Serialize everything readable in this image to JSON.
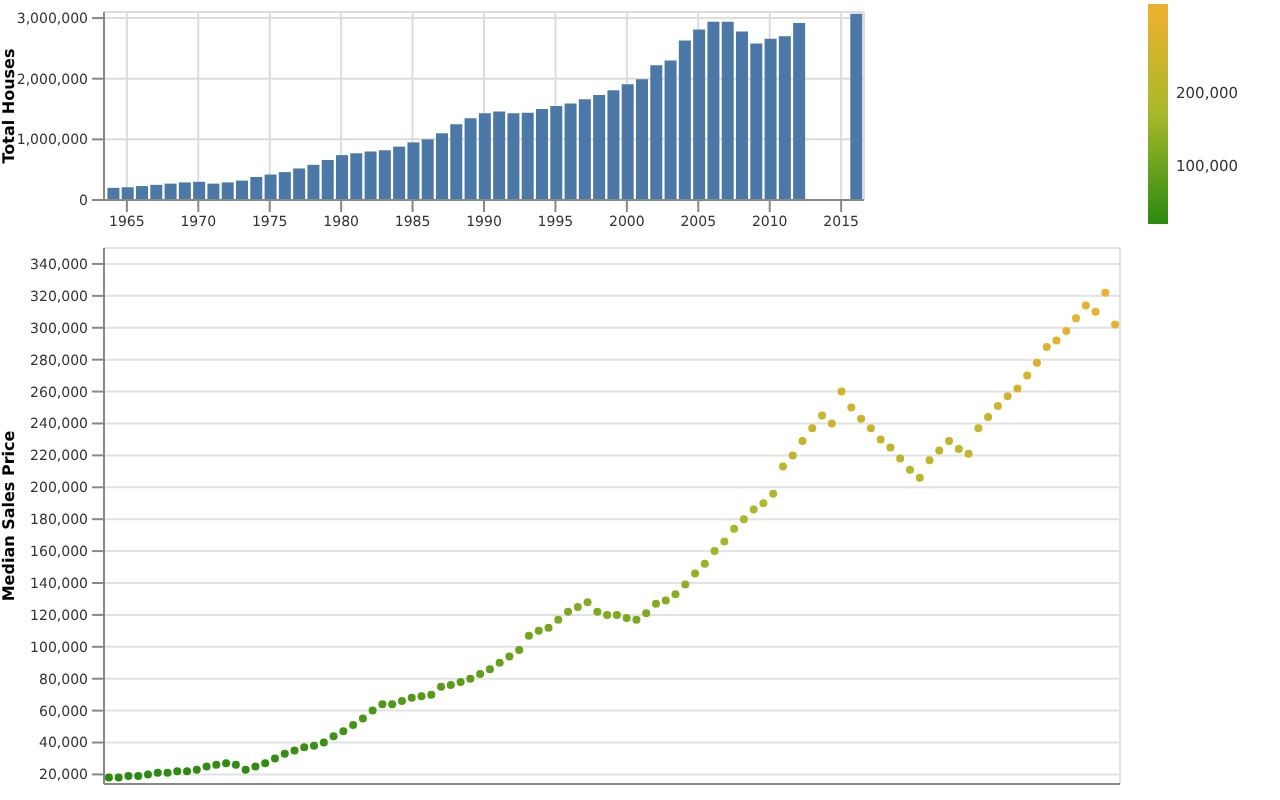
{
  "chart_data": [
    {
      "type": "bar",
      "ylabel": "Total Houses",
      "x": [
        1964,
        1965,
        1966,
        1967,
        1968,
        1969,
        1970,
        1971,
        1972,
        1973,
        1974,
        1975,
        1976,
        1977,
        1978,
        1979,
        1980,
        1981,
        1982,
        1983,
        1984,
        1985,
        1986,
        1987,
        1988,
        1989,
        1990,
        1991,
        1992,
        1993,
        1994,
        1995,
        1996,
        1997,
        1998,
        1999,
        2000,
        2001,
        2002,
        2003,
        2004,
        2005,
        2006,
        2007,
        2008,
        2009,
        2010,
        2011,
        2012,
        2013,
        2014,
        2015,
        2016
      ],
      "values": [
        200000,
        210000,
        230000,
        250000,
        270000,
        290000,
        300000,
        270000,
        290000,
        320000,
        380000,
        420000,
        460000,
        520000,
        580000,
        660000,
        740000,
        770000,
        800000,
        820000,
        880000,
        950000,
        1000000,
        1100000,
        1250000,
        1350000,
        1430000,
        1460000,
        1430000,
        1440000,
        1500000,
        1550000,
        1590000,
        1660000,
        1730000,
        1810000,
        1910000,
        1990000,
        2220000,
        2300000,
        2630000,
        2810000,
        2940000,
        2940000,
        2780000,
        2580000,
        2660000,
        2700000,
        2920000,
        null,
        null,
        null,
        3070000
      ],
      "color": "#4c78a8",
      "xlim": [
        1963.4,
        2016.6
      ],
      "xticks": [
        1965,
        1970,
        1975,
        1980,
        1985,
        1990,
        1995,
        2000,
        2005,
        2010,
        2015
      ],
      "ylim": [
        0,
        3100000
      ],
      "yticks": [
        0,
        {
          "value": 1000000,
          "label": "1,000,000"
        },
        {
          "value": 2000000,
          "label": "2,000,000"
        },
        {
          "value": 3000000,
          "label": "3,000,000"
        }
      ],
      "grid": true
    },
    {
      "type": "scatter",
      "ylabel": "Median Sales Price",
      "tick_labels": "y",
      "grid": true,
      "marker": "circle",
      "categories": [
        null,
        null,
        null,
        null,
        null,
        null,
        null,
        null,
        null,
        null,
        null,
        null,
        null,
        null,
        null,
        null,
        null,
        null,
        null,
        null,
        null,
        null,
        null,
        null,
        null,
        null,
        null,
        null,
        null,
        null,
        null,
        null,
        null,
        null,
        null,
        null,
        null,
        null,
        null,
        null,
        null,
        null,
        null,
        null,
        null,
        null,
        null,
        null,
        null,
        null,
        null,
        null,
        null,
        null,
        null,
        null,
        null,
        null,
        null,
        null,
        null,
        null,
        null,
        null,
        null,
        null,
        null,
        null,
        null,
        null,
        null,
        null,
        null,
        null,
        null,
        null,
        null,
        null,
        null,
        null,
        null,
        null,
        null,
        null,
        null,
        null,
        null,
        null,
        null,
        null,
        null,
        null,
        null,
        null,
        null,
        null,
        null,
        null,
        null,
        null,
        null,
        null,
        null,
        null
      ],
      "values": [
        18000,
        18000,
        19000,
        19000,
        20000,
        21000,
        21000,
        22000,
        22000,
        23000,
        25000,
        26000,
        27000,
        26000,
        23000,
        25000,
        27000,
        30000,
        33000,
        35000,
        37000,
        38000,
        40000,
        44000,
        47000,
        51000,
        55000,
        60000,
        64000,
        64000,
        66000,
        68000,
        69000,
        70000,
        75000,
        76000,
        78000,
        80000,
        83000,
        86000,
        90000,
        94000,
        98000,
        107000,
        110000,
        112000,
        117000,
        122000,
        125000,
        128000,
        122000,
        120000,
        120000,
        118000,
        117000,
        121000,
        127000,
        129000,
        133000,
        139000,
        146000,
        152000,
        160000,
        166000,
        174000,
        180000,
        186000,
        190000,
        196000,
        213000,
        220000,
        229000,
        237000,
        245000,
        240000,
        260000,
        250000,
        243000,
        237000,
        230000,
        225000,
        218000,
        211000,
        206000,
        217000,
        223000,
        229000,
        224000,
        221000,
        237000,
        244000,
        251000,
        257000,
        262000,
        270000,
        278000,
        288000,
        292000,
        298000,
        306000,
        314000,
        310000,
        322000,
        302000
      ],
      "cvalues": [
        18000,
        18000,
        19000,
        19000,
        20000,
        21000,
        21000,
        22000,
        22000,
        23000,
        25000,
        26000,
        27000,
        26000,
        23000,
        25000,
        27000,
        30000,
        33000,
        35000,
        37000,
        38000,
        40000,
        44000,
        47000,
        51000,
        55000,
        60000,
        64000,
        64000,
        66000,
        68000,
        69000,
        70000,
        75000,
        76000,
        78000,
        80000,
        83000,
        86000,
        90000,
        94000,
        98000,
        107000,
        110000,
        112000,
        117000,
        122000,
        125000,
        128000,
        122000,
        120000,
        120000,
        118000,
        117000,
        121000,
        127000,
        129000,
        133000,
        139000,
        146000,
        152000,
        160000,
        166000,
        174000,
        180000,
        186000,
        190000,
        196000,
        213000,
        220000,
        229000,
        237000,
        245000,
        240000,
        260000,
        250000,
        243000,
        237000,
        230000,
        225000,
        218000,
        211000,
        206000,
        217000,
        223000,
        229000,
        224000,
        221000,
        237000,
        244000,
        251000,
        257000,
        262000,
        270000,
        278000,
        288000,
        292000,
        298000,
        306000,
        314000,
        310000,
        322000,
        302000
      ],
      "clim": [
        18000,
        322000
      ],
      "cticks": [
        {
          "value": 100000,
          "label": "100,000"
        },
        {
          "value": 200000,
          "label": "200,000"
        }
      ],
      "ylim": [
        14000,
        350000
      ],
      "yticks": [
        {
          "value": 20000,
          "label": "20,000"
        },
        {
          "value": 40000,
          "label": "40,000"
        },
        {
          "value": 60000,
          "label": "60,000"
        },
        {
          "value": 80000,
          "label": "80,000"
        },
        {
          "value": 100000,
          "label": "100,000"
        },
        {
          "value": 120000,
          "label": "120,000"
        },
        {
          "value": 140000,
          "label": "140,000"
        },
        {
          "value": 160000,
          "label": "160,000"
        },
        {
          "value": 180000,
          "label": "180,000"
        },
        {
          "value": 200000,
          "label": "200,000"
        },
        {
          "value": 220000,
          "label": "220,000"
        },
        {
          "value": 240000,
          "label": "240,000"
        },
        {
          "value": 260000,
          "label": "260,000"
        },
        {
          "value": 280000,
          "label": "280,000"
        },
        {
          "value": 300000,
          "label": "300,000"
        },
        {
          "value": 320000,
          "label": "320,000"
        },
        {
          "value": 340000,
          "label": "340,000"
        }
      ]
    }
  ]
}
